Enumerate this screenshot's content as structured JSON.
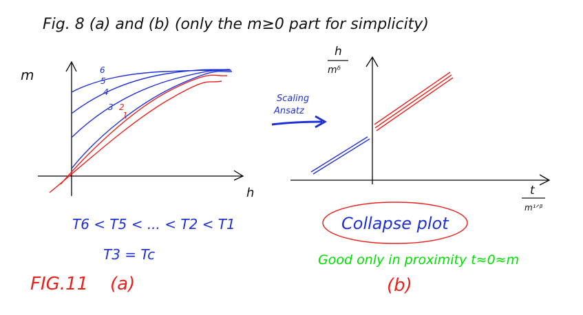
{
  "header": {
    "title": "Fig. 8 (a) and (b) (only the m≥0 part for simplicity)"
  },
  "panel_a": {
    "y_axis_label": "m",
    "x_axis_label": "h",
    "curve_labels": [
      "6",
      "5",
      "4",
      "3",
      "2",
      "1"
    ],
    "ordering_text": "T6 < T5 < ... < T2 < T1",
    "critical_text": "T3 = Tc",
    "panel_label": "(a)",
    "fig_label": "FIG.11",
    "colors": {
      "above_tc": "#1e2fd6",
      "below_tc": "#e8211d",
      "axes": "#000000"
    }
  },
  "arrow_text": {
    "line1": "Scaling",
    "line2": "Ansatz"
  },
  "panel_b": {
    "y_axis_num": "h",
    "y_axis_den": "mᵟ",
    "x_axis_num": "t",
    "x_axis_den": "m¹ᐟᵝ",
    "collapse_label": "Collapse plot",
    "note": "Good only in proximity t≈0≈m",
    "panel_label": "(b)",
    "colors": {
      "note": "#00e000",
      "collapse": "#e8211d"
    }
  }
}
